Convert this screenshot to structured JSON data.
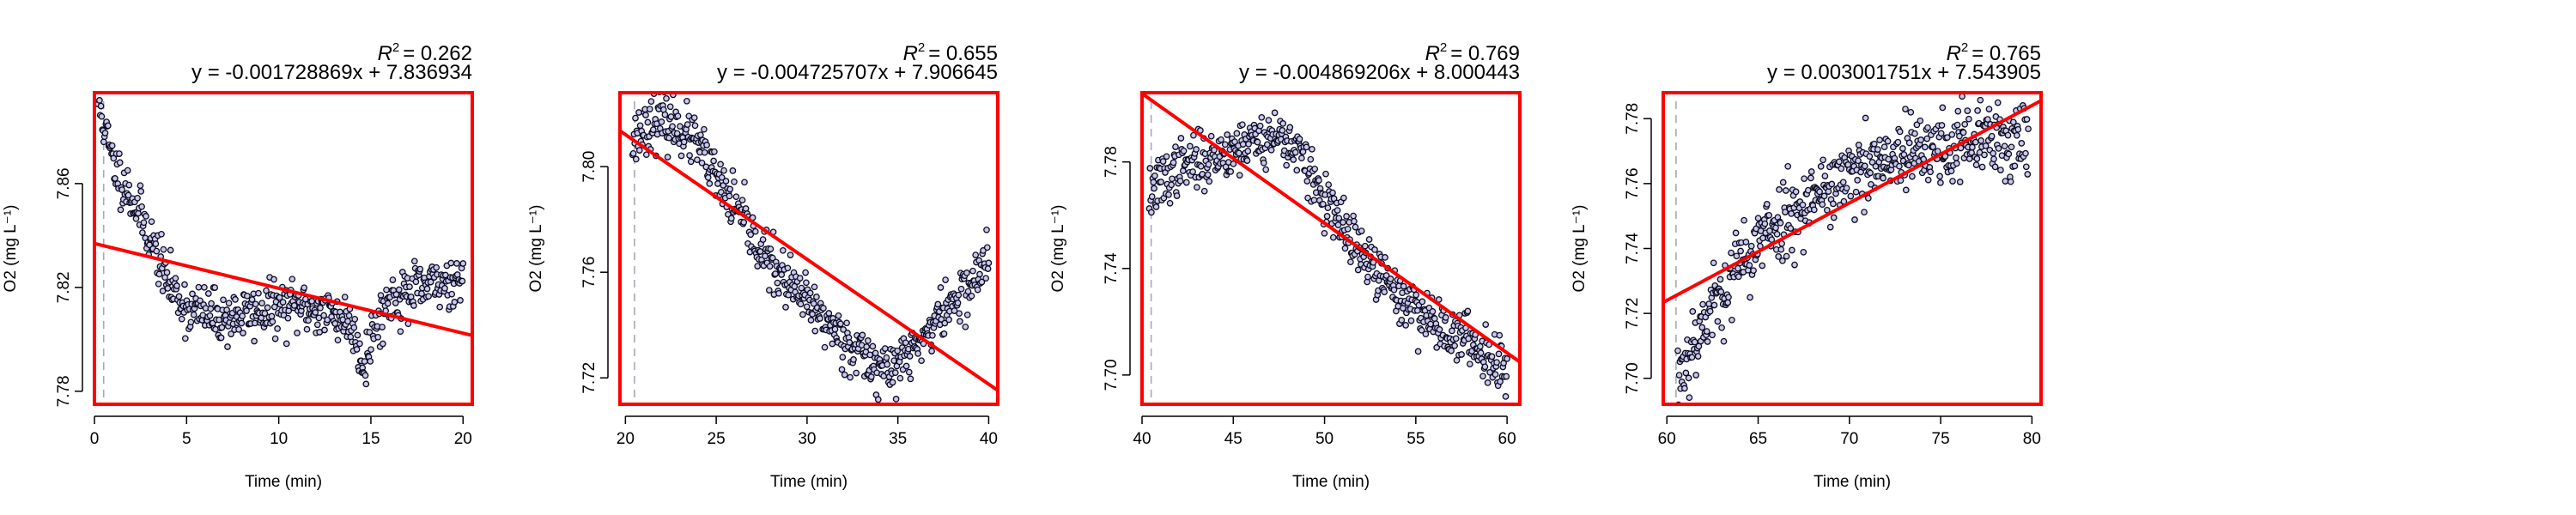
{
  "chart_data": [
    {
      "type": "scatter",
      "xlabel": "Time (min)",
      "ylabel": "O2 (mg L⁻¹)",
      "r2_label": "R",
      "r2_value": "= 0.262",
      "equation": "y = -0.001728869x + 7.836934",
      "fit": {
        "slope": -0.001728869,
        "intercept": 7.836934
      },
      "xlim": [
        0,
        20.5
      ],
      "ylim": [
        7.775,
        7.895
      ],
      "xticks": [
        "0",
        "5",
        "10",
        "15",
        "20"
      ],
      "yticks": [
        "7.78",
        "7.82",
        "7.86"
      ],
      "vline_x": 0.5,
      "trend": [
        [
          0.2,
          7.892
        ],
        [
          1.0,
          7.868
        ],
        [
          2.0,
          7.855
        ],
        [
          3.0,
          7.84
        ],
        [
          4.0,
          7.822
        ],
        [
          5.0,
          7.812
        ],
        [
          7.0,
          7.808
        ],
        [
          9.0,
          7.811
        ],
        [
          11.0,
          7.813
        ],
        [
          13.0,
          7.81
        ],
        [
          14.0,
          7.805
        ],
        [
          14.6,
          7.79
        ],
        [
          15.2,
          7.805
        ],
        [
          16.0,
          7.815
        ],
        [
          18.0,
          7.82
        ],
        [
          20.0,
          7.824
        ]
      ],
      "noise": 0.005,
      "n_points": 520,
      "seed": 11
    },
    {
      "type": "scatter",
      "xlabel": "Time (min)",
      "ylabel": "O2 (mg L⁻¹)",
      "r2_label": "R",
      "r2_value": "= 0.655",
      "equation": "y = -0.004725707x + 7.906645",
      "fit": {
        "slope": -0.004725707,
        "intercept": 7.906645
      },
      "xlim": [
        19.7,
        40.5
      ],
      "ylim": [
        7.71,
        7.828
      ],
      "xticks": [
        "20",
        "25",
        "30",
        "35",
        "40"
      ],
      "yticks": [
        "7.72",
        "7.76",
        "7.80"
      ],
      "vline_x": 20.5,
      "trend": [
        [
          20.4,
          7.81
        ],
        [
          21.5,
          7.818
        ],
        [
          23.0,
          7.815
        ],
        [
          24.0,
          7.808
        ],
        [
          25.0,
          7.795
        ],
        [
          26.0,
          7.785
        ],
        [
          27.5,
          7.768
        ],
        [
          29.0,
          7.755
        ],
        [
          30.5,
          7.745
        ],
        [
          32.0,
          7.735
        ],
        [
          33.5,
          7.726
        ],
        [
          34.5,
          7.722
        ],
        [
          36.0,
          7.732
        ],
        [
          37.5,
          7.745
        ],
        [
          39.0,
          7.755
        ],
        [
          40.0,
          7.765
        ]
      ],
      "noise": 0.005,
      "n_points": 520,
      "seed": 23
    },
    {
      "type": "scatter",
      "xlabel": "Time (min)",
      "ylabel": "O2 (mg L⁻¹)",
      "r2_label": "R",
      "r2_value": "= 0.769",
      "equation": "y = -0.004869206x + 8.000443",
      "fit": {
        "slope": -0.004869206,
        "intercept": 8.000443
      },
      "xlim": [
        40,
        60.7
      ],
      "ylim": [
        7.689,
        7.806
      ],
      "xticks": [
        "40",
        "45",
        "50",
        "55",
        "60"
      ],
      "yticks": [
        "7.70",
        "7.74",
        "7.78"
      ],
      "vline_x": 40.5,
      "trend": [
        [
          40.4,
          7.768
        ],
        [
          42.0,
          7.778
        ],
        [
          44.0,
          7.782
        ],
        [
          46.0,
          7.788
        ],
        [
          47.5,
          7.79
        ],
        [
          48.5,
          7.785
        ],
        [
          50.0,
          7.765
        ],
        [
          52.0,
          7.745
        ],
        [
          54.0,
          7.73
        ],
        [
          56.0,
          7.72
        ],
        [
          58.0,
          7.712
        ],
        [
          60.0,
          7.703
        ]
      ],
      "noise": 0.005,
      "n_points": 520,
      "seed": 37
    },
    {
      "type": "scatter",
      "xlabel": "Time (min)",
      "ylabel": "O2 (mg L⁻¹)",
      "r2_label": "R",
      "r2_value": "= 0.765",
      "equation": "y = 0.003001751x + 7.543905",
      "fit": {
        "slope": 0.003001751,
        "intercept": 7.543905
      },
      "xlim": [
        59.8,
        80.5
      ],
      "ylim": [
        7.692,
        7.788
      ],
      "xticks": [
        "60",
        "65",
        "70",
        "75",
        "80"
      ],
      "yticks": [
        "7.70",
        "7.72",
        "7.74",
        "7.76",
        "7.78"
      ],
      "vline_x": 60.5,
      "trend": [
        [
          60.6,
          7.7
        ],
        [
          61.5,
          7.712
        ],
        [
          62.5,
          7.722
        ],
        [
          64.0,
          7.735
        ],
        [
          65.5,
          7.745
        ],
        [
          67.0,
          7.752
        ],
        [
          69.0,
          7.76
        ],
        [
          71.0,
          7.764
        ],
        [
          73.0,
          7.768
        ],
        [
          75.0,
          7.771
        ],
        [
          77.0,
          7.773
        ],
        [
          79.8,
          7.774
        ]
      ],
      "noise": 0.006,
      "n_points": 520,
      "seed": 53
    }
  ]
}
